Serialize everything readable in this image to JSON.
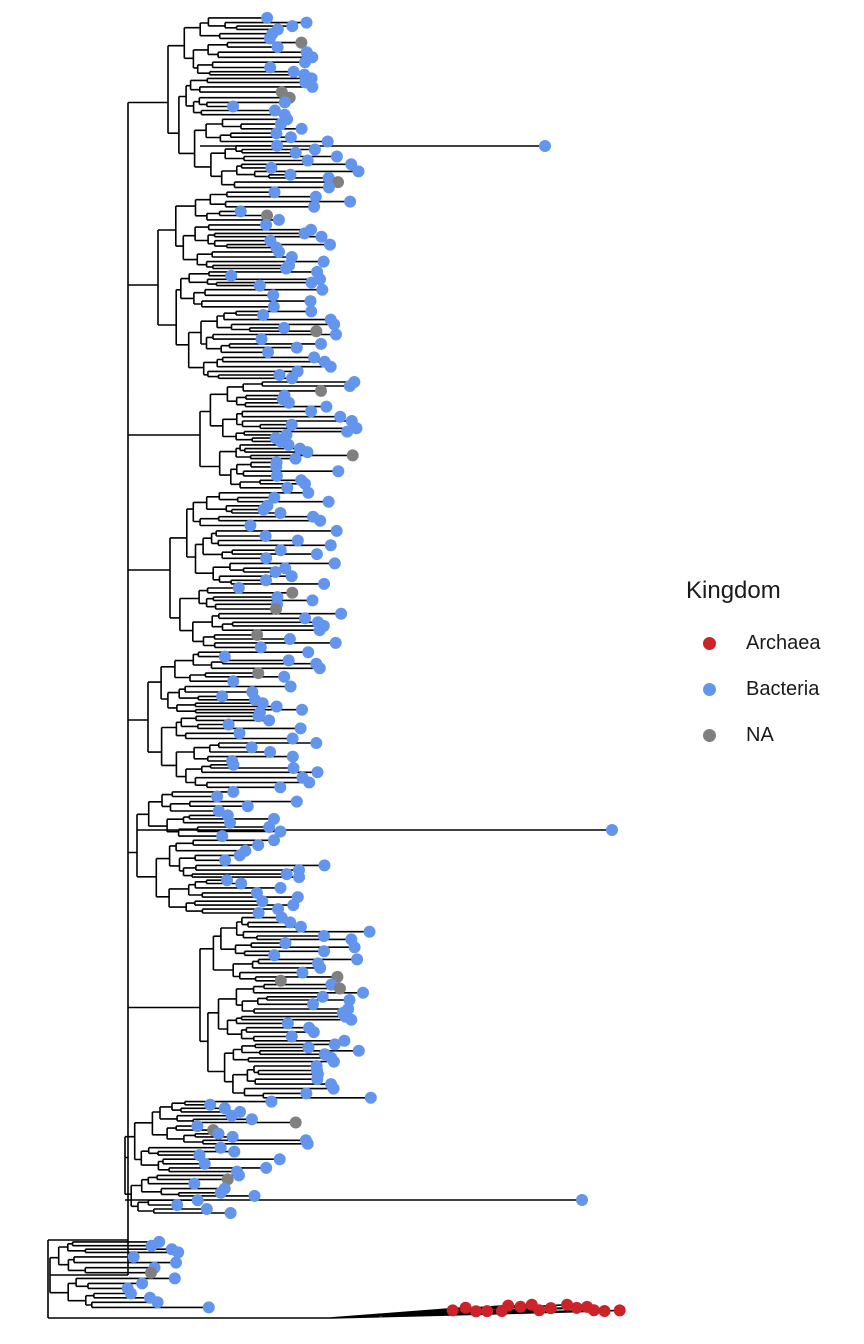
{
  "legend": {
    "title": "Kingdom",
    "items": [
      {
        "label": "Archaea",
        "color": "#cc2229"
      },
      {
        "label": "Bacteria",
        "color": "#6495ed"
      },
      {
        "label": "NA",
        "color": "#808080"
      }
    ]
  }
}
